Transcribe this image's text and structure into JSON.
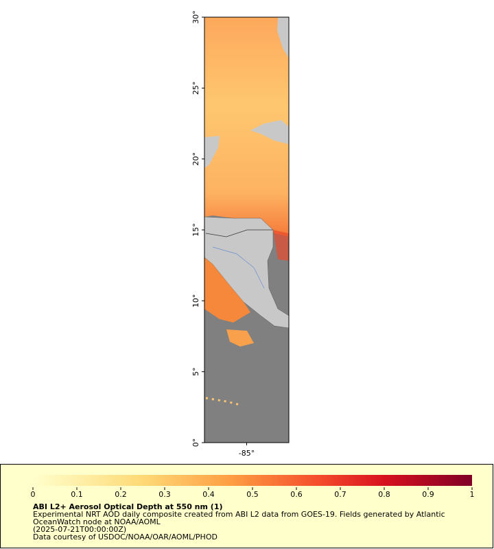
{
  "map": {
    "lat_range": [
      0,
      30
    ],
    "lon_range": [
      -88,
      -82
    ],
    "lat_ticks": [
      {
        "value": 0,
        "label": "0°"
      },
      {
        "value": 5,
        "label": "5°"
      },
      {
        "value": 10,
        "label": "10°"
      },
      {
        "value": 15,
        "label": "15°"
      },
      {
        "value": 20,
        "label": "20°"
      },
      {
        "value": 25,
        "label": "25°"
      },
      {
        "value": 30,
        "label": "30°"
      }
    ],
    "lon_ticks": [
      {
        "value": -85,
        "label": "-85°"
      }
    ]
  },
  "colorbar": {
    "range": [
      0,
      1
    ],
    "ticks": [
      0,
      0.1,
      0.2,
      0.3,
      0.4,
      0.5,
      0.6,
      0.7,
      0.8,
      0.9,
      1
    ]
  },
  "legend": {
    "title": "ABI L2+ Aerosol Optical Depth at 550 nm (1)",
    "lines": [
      "Experimental NRT AOD daily composite created from ABI L2 data from GOES-19. Fields generated by Atlantic",
      "OceanWatch node at NOAA/AOML",
      "(2025-07-21T00:00:00Z)",
      "Data courtesy of USDOC/NOAA/OAR/AOML/PHOD"
    ]
  }
}
